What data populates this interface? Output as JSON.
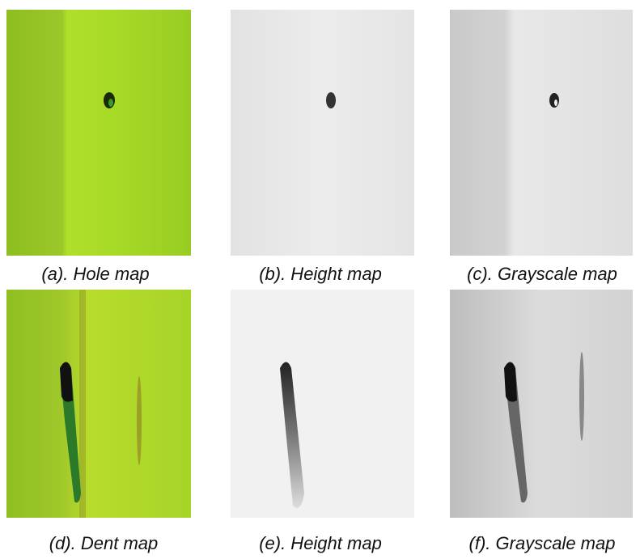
{
  "figure": {
    "captions": [
      "(a). Hole map",
      "(b). Height map",
      "(c). Grayscale map",
      "(d). Dent map",
      "(e). Height map",
      "(f). Grayscale map"
    ]
  }
}
